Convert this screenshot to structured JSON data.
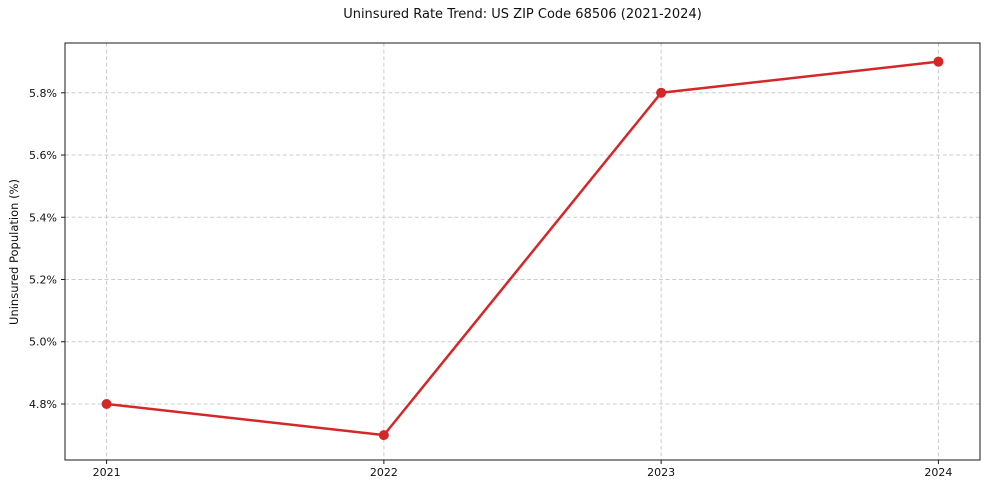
{
  "chart_data": {
    "type": "line",
    "title": "Uninsured Rate Trend: US ZIP Code 68506 (2021-2024)",
    "xlabel": "",
    "ylabel": "Uninsured Population (%)",
    "categories": [
      "2021",
      "2022",
      "2023",
      "2024"
    ],
    "x": [
      2021,
      2022,
      2023,
      2024
    ],
    "series": [
      {
        "name": "uninsured-rate",
        "values": [
          4.8,
          4.7,
          5.8,
          5.9
        ]
      }
    ],
    "yticks": {
      "values": [
        4.8,
        5.0,
        5.2,
        5.4,
        5.6,
        5.8
      ],
      "labels": [
        "4.8%",
        "5.0%",
        "5.2%",
        "5.4%",
        "5.6%",
        "5.8%"
      ]
    },
    "xlim": [
      2020.85,
      2024.15
    ],
    "ylim": [
      4.62,
      5.96
    ],
    "grid": true,
    "grid_style": "dashed",
    "legend": "none",
    "colors": {
      "line": "#d62728",
      "marker": "#d62728",
      "grid": "#cccccc",
      "spine": "#1a1a1a",
      "tick_label": "#111111"
    }
  }
}
